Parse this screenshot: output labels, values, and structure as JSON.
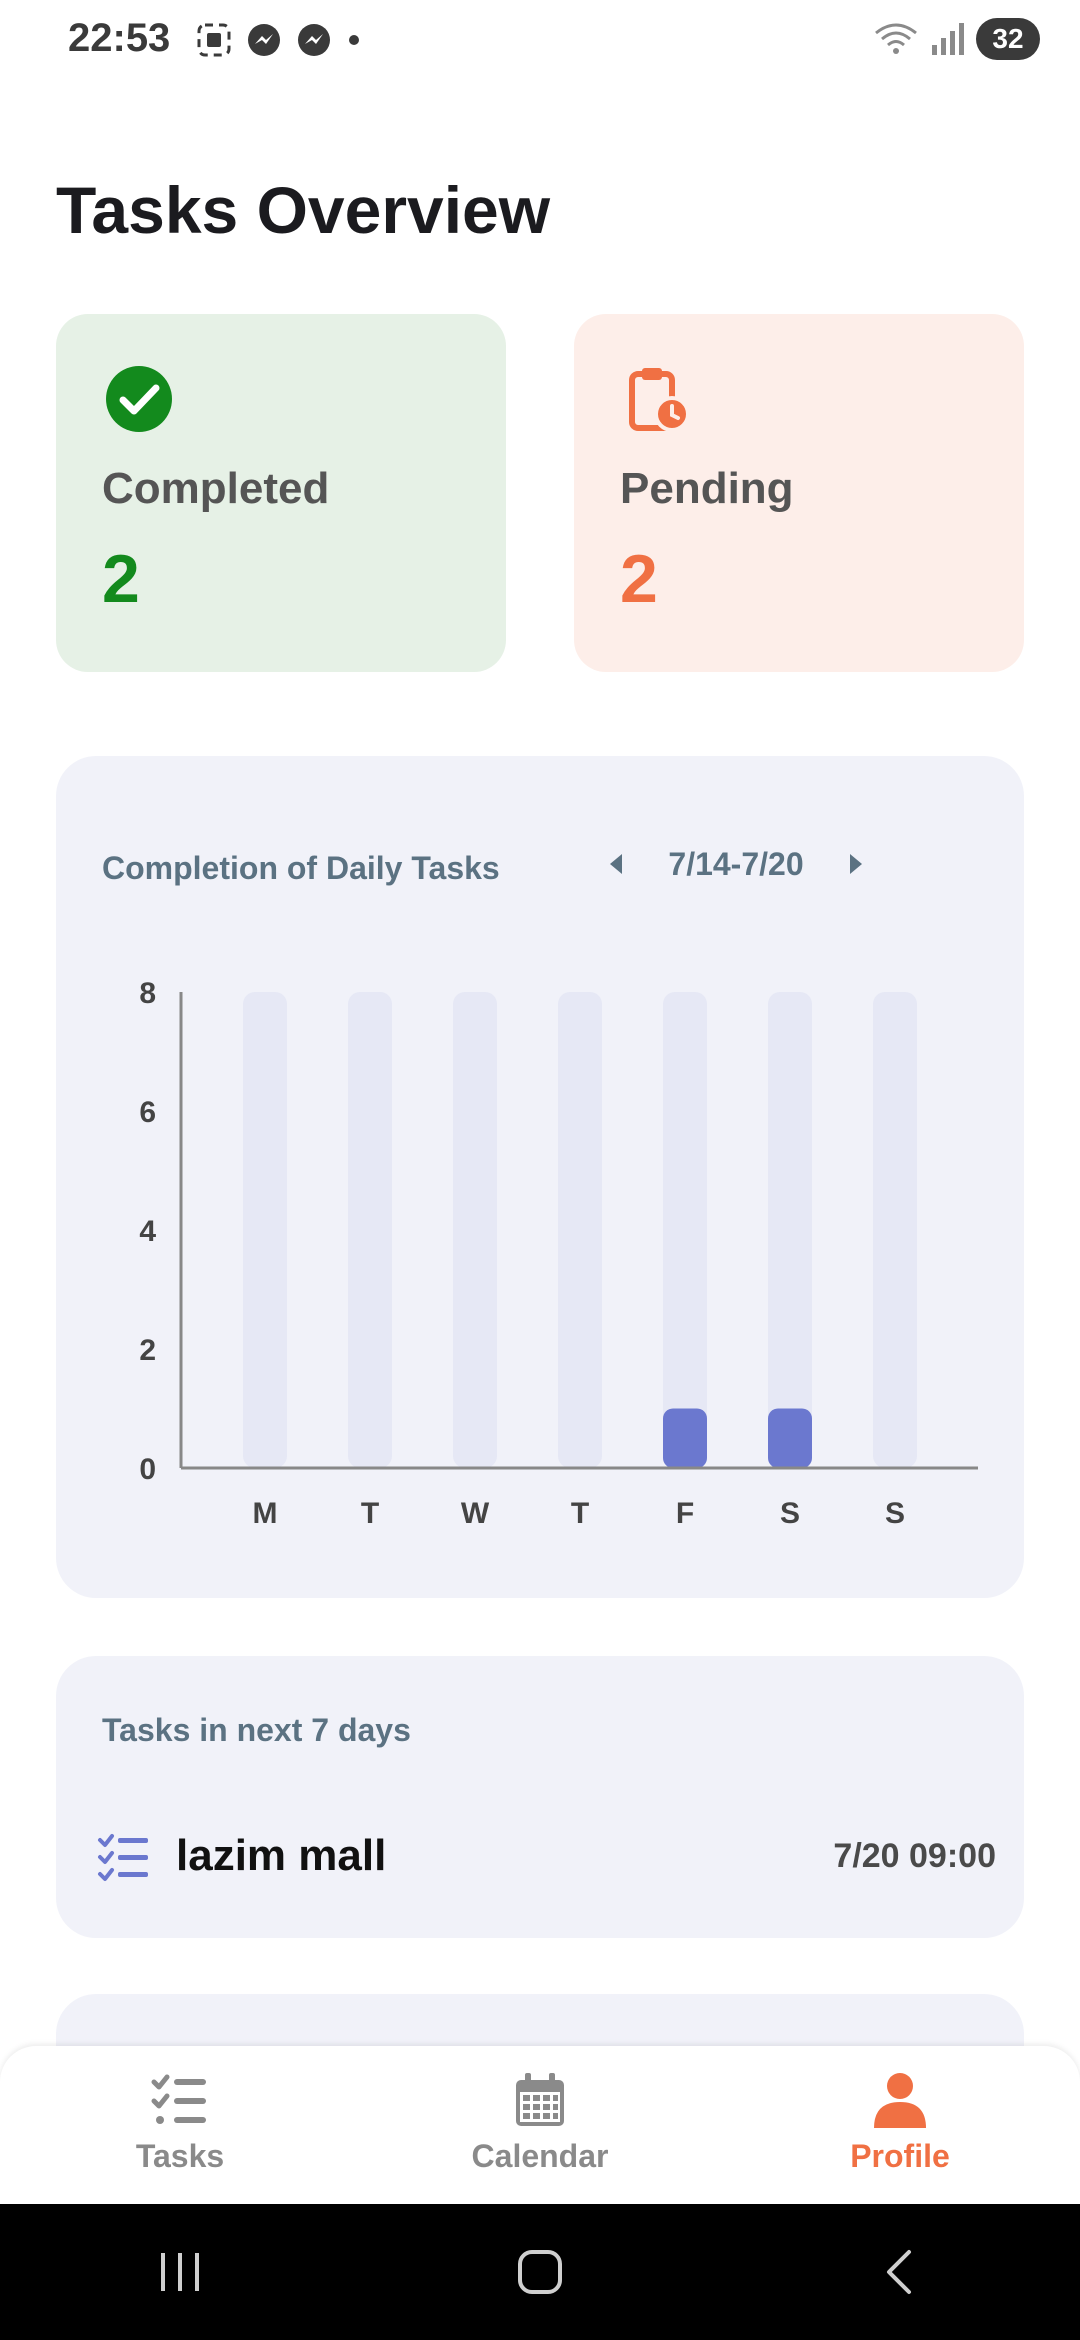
{
  "status_bar": {
    "time": "22:53",
    "battery": "32"
  },
  "page_title": "Tasks Overview",
  "summary": {
    "completed": {
      "label": "Completed",
      "count": "2"
    },
    "pending": {
      "label": "Pending",
      "count": "2"
    }
  },
  "chart_card": {
    "title": "Completion of Daily Tasks",
    "week_range": "7/14-7/20"
  },
  "chart_data": {
    "type": "bar",
    "title": "Completion of Daily Tasks",
    "categories": [
      "M",
      "T",
      "W",
      "T",
      "F",
      "S",
      "S"
    ],
    "values": [
      0,
      0,
      0,
      0,
      1,
      1,
      0
    ],
    "yticks": [
      "0",
      "2",
      "4",
      "6",
      "8"
    ],
    "ylim": [
      0,
      8
    ],
    "grid": false,
    "colors": {
      "bar": "#6b78cf",
      "track": "#e6e8f5",
      "axis": "#888888"
    }
  },
  "upcoming": {
    "title": "Tasks in next 7 days",
    "tasks": [
      {
        "name": "lazim mall",
        "time": "7/20 09:00"
      }
    ]
  },
  "bottom_nav": {
    "items": [
      {
        "label": "Tasks",
        "icon": "task-list-icon"
      },
      {
        "label": "Calendar",
        "icon": "calendar-icon"
      },
      {
        "label": "Profile",
        "icon": "person-icon"
      }
    ],
    "active": "Profile"
  },
  "colors": {
    "accent": "#f07043",
    "success": "#138a1d",
    "chart_bar": "#6b78cf"
  }
}
